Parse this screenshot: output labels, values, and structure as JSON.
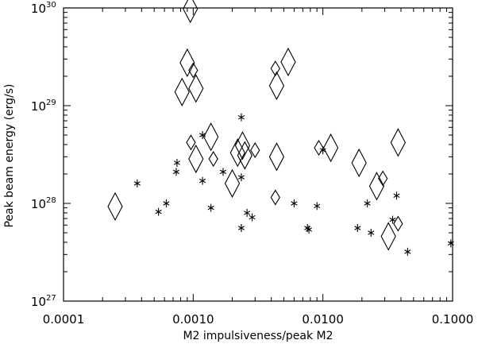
{
  "chart_data": {
    "type": "scatter",
    "title": "",
    "xlabel": "M2 impulsiveness/peak M2",
    "ylabel": "Peak beam energy (erg/s)",
    "xscale": "log",
    "yscale": "log",
    "xlim": [
      0.0001,
      0.1
    ],
    "ylim": [
      1e+27,
      1e+30
    ],
    "grid": false,
    "legend": "none",
    "x_ticks": [
      {
        "value": 0.0001,
        "label": "0.0001"
      },
      {
        "value": 0.001,
        "label": "0.0010"
      },
      {
        "value": 0.01,
        "label": "0.0100"
      },
      {
        "value": 0.1,
        "label": "0.1000"
      }
    ],
    "y_ticks": [
      {
        "value": 1e+27,
        "base": "10",
        "exp": "27"
      },
      {
        "value": 1e+28,
        "base": "10",
        "exp": "28"
      },
      {
        "value": 1e+29,
        "base": "10",
        "exp": "29"
      },
      {
        "value": 1e+30,
        "base": "10",
        "exp": "30"
      }
    ],
    "series": [
      {
        "marker": "diamond",
        "points": [
          {
            "x": 0.00025,
            "y": 9.3e+27,
            "size": "large"
          },
          {
            "x": 0.00082,
            "y": 1.38e+29,
            "size": "large"
          },
          {
            "x": 0.0009,
            "y": 2.75e+29,
            "size": "large"
          },
          {
            "x": 0.00095,
            "y": 9.8e+29,
            "size": "large"
          },
          {
            "x": 0.00096,
            "y": 4.2e+28,
            "size": "small"
          },
          {
            "x": 0.001,
            "y": 2.3e+29,
            "size": "small"
          },
          {
            "x": 0.00105,
            "y": 1.5e+29,
            "size": "large"
          },
          {
            "x": 0.00105,
            "y": 2.85e+28,
            "size": "large"
          },
          {
            "x": 0.00137,
            "y": 4.8e+28,
            "size": "large"
          },
          {
            "x": 0.00143,
            "y": 2.85e+28,
            "size": "small"
          },
          {
            "x": 0.002,
            "y": 1.6e+28,
            "size": "large"
          },
          {
            "x": 0.0022,
            "y": 3.3e+28,
            "size": "large"
          },
          {
            "x": 0.0024,
            "y": 3.9e+28,
            "size": "large"
          },
          {
            "x": 0.0025,
            "y": 3.1e+28,
            "size": "large"
          },
          {
            "x": 0.003,
            "y": 3.5e+28,
            "size": "small"
          },
          {
            "x": 0.0043,
            "y": 1.15e+28,
            "size": "small"
          },
          {
            "x": 0.0043,
            "y": 2.4e+29,
            "size": "small"
          },
          {
            "x": 0.0044,
            "y": 1.6e+29,
            "size": "large"
          },
          {
            "x": 0.0044,
            "y": 3e+28,
            "size": "large"
          },
          {
            "x": 0.0054,
            "y": 2.8e+29,
            "size": "large"
          },
          {
            "x": 0.0093,
            "y": 3.7e+28,
            "size": "small"
          },
          {
            "x": 0.0115,
            "y": 3.7e+28,
            "size": "large"
          },
          {
            "x": 0.019,
            "y": 2.6e+28,
            "size": "large"
          },
          {
            "x": 0.026,
            "y": 1.5e+28,
            "size": "large"
          },
          {
            "x": 0.029,
            "y": 1.8e+28,
            "size": "small"
          },
          {
            "x": 0.032,
            "y": 4.6e+27,
            "size": "large"
          },
          {
            "x": 0.038,
            "y": 6.2e+27,
            "size": "small"
          },
          {
            "x": 0.038,
            "y": 4.2e+28,
            "size": "large"
          }
        ]
      },
      {
        "marker": "asterisk",
        "points": [
          {
            "x": 0.00037,
            "y": 1.6e+28
          },
          {
            "x": 0.00054,
            "y": 8.2e+27
          },
          {
            "x": 0.00062,
            "y": 1e+28
          },
          {
            "x": 0.00074,
            "y": 2.1e+28
          },
          {
            "x": 0.00075,
            "y": 2.6e+28
          },
          {
            "x": 0.00118,
            "y": 1.7e+28
          },
          {
            "x": 0.00118,
            "y": 5e+28
          },
          {
            "x": 0.00137,
            "y": 9e+27
          },
          {
            "x": 0.0017,
            "y": 2.1e+28
          },
          {
            "x": 0.00235,
            "y": 7.6e+28
          },
          {
            "x": 0.00235,
            "y": 1.85e+28
          },
          {
            "x": 0.00235,
            "y": 5.6e+27
          },
          {
            "x": 0.0026,
            "y": 8e+27
          },
          {
            "x": 0.00285,
            "y": 7.2e+27
          },
          {
            "x": 0.006,
            "y": 1e+28
          },
          {
            "x": 0.0076,
            "y": 5.6e+27
          },
          {
            "x": 0.0078,
            "y": 5.4e+27
          },
          {
            "x": 0.009,
            "y": 9.4e+27
          },
          {
            "x": 0.01,
            "y": 3.5e+28
          },
          {
            "x": 0.0185,
            "y": 5.6e+27
          },
          {
            "x": 0.022,
            "y": 1e+28
          },
          {
            "x": 0.0235,
            "y": 5e+27
          },
          {
            "x": 0.0345,
            "y": 6.8e+27
          },
          {
            "x": 0.037,
            "y": 1.2e+28
          },
          {
            "x": 0.045,
            "y": 3.2e+27
          },
          {
            "x": 0.097,
            "y": 3.9e+27
          }
        ]
      }
    ]
  }
}
